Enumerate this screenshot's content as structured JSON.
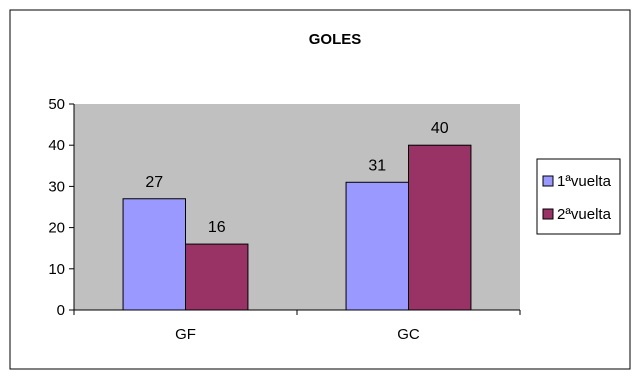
{
  "chart_data": {
    "type": "bar",
    "title": "GOLES",
    "categories": [
      "GF",
      "GC"
    ],
    "series": [
      {
        "name": "1ªvuelta",
        "values": [
          27,
          31
        ],
        "color": "#9999FF"
      },
      {
        "name": "2ªvuelta",
        "values": [
          16,
          40
        ],
        "color": "#993366"
      }
    ],
    "ylim": [
      0,
      50
    ],
    "yticks": [
      0,
      10,
      20,
      30,
      40,
      50
    ],
    "xlabel": "",
    "ylabel": "",
    "grid": false,
    "plot_background": "#C0C0C0",
    "data_labels": true,
    "legend_position": "right"
  }
}
